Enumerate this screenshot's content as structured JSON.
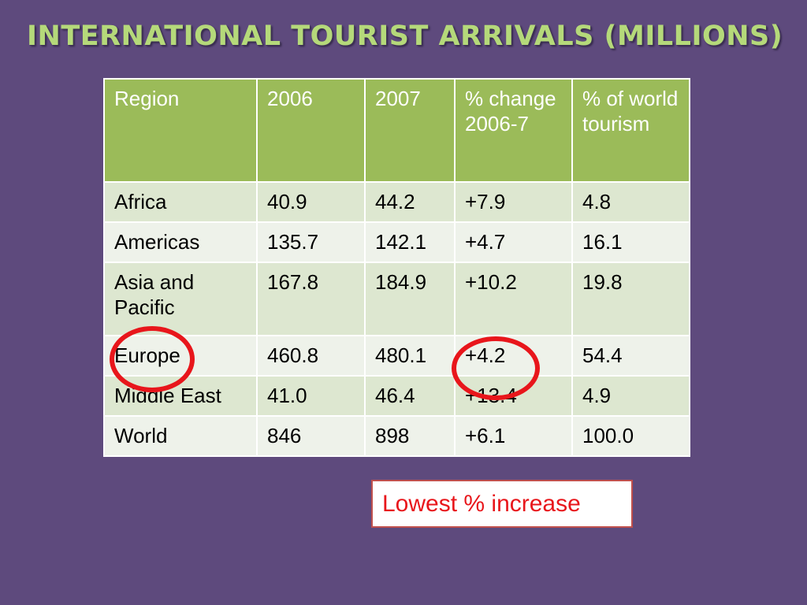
{
  "slide": {
    "title": "INTERNATIONAL TOURIST ARRIVALS (MILLIONS)",
    "callout": "Lowest % increase",
    "accent_colors": {
      "background": "#5e4a7d",
      "title": "#b5d97a",
      "table_header": "#9bbb59",
      "highlight_ring": "#e8161b"
    }
  },
  "table": {
    "headers": [
      "Region",
      "2006",
      "2007",
      "% change 2006-7",
      "% of world tourism"
    ],
    "rows": [
      [
        "Africa",
        "40.9",
        "44.2",
        "+7.9",
        "4.8"
      ],
      [
        "Americas",
        "135.7",
        "142.1",
        "+4.7",
        "16.1"
      ],
      [
        "Asia and Pacific",
        "167.8",
        "184.9",
        "+10.2",
        "19.8"
      ],
      [
        "Europe",
        "460.8",
        "480.1",
        "+4.2",
        "54.4"
      ],
      [
        "Middle East",
        "41.0",
        "46.4",
        "+13.4",
        "4.9"
      ],
      [
        "World",
        "846",
        "898",
        "+6.1",
        "100.0"
      ]
    ]
  }
}
